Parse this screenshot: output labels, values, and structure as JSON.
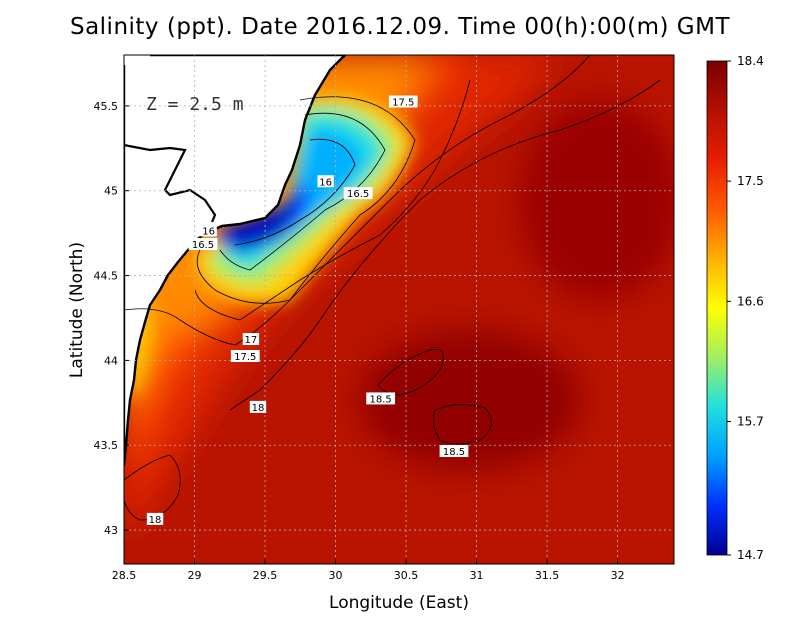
{
  "title": "Salinity (ppt). Date 2016.12.09. Time 00(h):00(m) GMT",
  "depth_label": "Z = 2.5 m",
  "colors": {
    "land": "#ffffff",
    "coast": "#000000",
    "grid": "#b4b4b4",
    "colormap": [
      "#00008f",
      "#0030ff",
      "#00a0ff",
      "#20e0e0",
      "#a0f060",
      "#ffff00",
      "#ffb000",
      "#ff5a00",
      "#e81e00",
      "#b41000",
      "#7a0000"
    ]
  },
  "chart_data": {
    "type": "heatmap",
    "xlabel": "Longitude (East)",
    "ylabel": "Latitude (North)",
    "xlim": [
      28.5,
      32.4
    ],
    "ylim": [
      42.8,
      45.8
    ],
    "xticks": [
      "28.5",
      "29",
      "29.5",
      "30",
      "30.5",
      "31",
      "31.5",
      "32"
    ],
    "yticks": [
      "43",
      "43.5",
      "44",
      "44.5",
      "45",
      "45.5"
    ],
    "grid": true,
    "colorbar": {
      "min": 14.7,
      "max": 18.4,
      "ticks": [
        "18.4",
        "17.5",
        "16.6",
        "15.7",
        "14.7"
      ]
    },
    "contour_labels": [
      {
        "text": "17.5",
        "lon": 30.48,
        "lat": 45.52
      },
      {
        "text": "16",
        "lon": 29.93,
        "lat": 45.05
      },
      {
        "text": "16.5",
        "lon": 30.16,
        "lat": 44.98
      },
      {
        "text": "16",
        "lon": 29.1,
        "lat": 44.76
      },
      {
        "text": "16.5",
        "lon": 29.06,
        "lat": 44.68
      },
      {
        "text": "17",
        "lon": 29.4,
        "lat": 44.12
      },
      {
        "text": "17.5",
        "lon": 29.36,
        "lat": 44.02
      },
      {
        "text": "18.5",
        "lon": 30.32,
        "lat": 43.77
      },
      {
        "text": "18",
        "lon": 29.45,
        "lat": 43.72
      },
      {
        "text": "18.5",
        "lon": 30.84,
        "lat": 43.46
      },
      {
        "text": "18",
        "lon": 28.72,
        "lat": 43.06
      }
    ]
  }
}
